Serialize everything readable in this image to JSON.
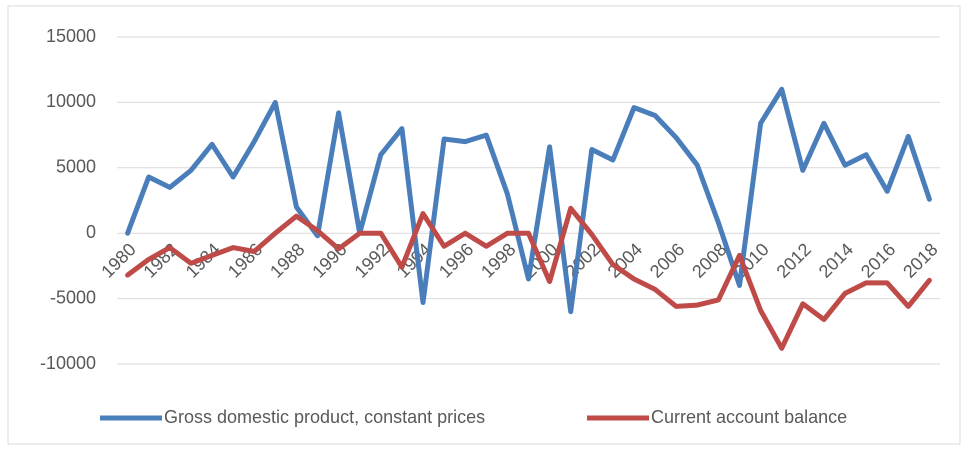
{
  "chart_data": {
    "type": "line",
    "categories": [
      "1980",
      null,
      "1982",
      null,
      "1984",
      null,
      "1986",
      null,
      "1988",
      null,
      "1990",
      null,
      "1992",
      null,
      "1994",
      null,
      "1996",
      null,
      "1998",
      null,
      "2000",
      null,
      "2002",
      null,
      "2004",
      null,
      "2006",
      null,
      "2008",
      null,
      "2010",
      null,
      "2012",
      null,
      "2014",
      null,
      "2016",
      null,
      "2018"
    ],
    "series": [
      {
        "name": "Gross domestic product, constant prices",
        "color": "#4a7ebb",
        "values": [
          0,
          4300,
          3500,
          4800,
          6800,
          4300,
          7000,
          10000,
          2000,
          -200,
          9200,
          0,
          6000,
          8000,
          -5300,
          7200,
          7000,
          7500,
          3000,
          -3500,
          6600,
          -6000,
          6400,
          5600,
          9600,
          9000,
          7300,
          5200,
          800,
          -4000,
          8400,
          11000,
          4800,
          8400,
          5200,
          6000,
          3200,
          7400,
          2600
        ]
      },
      {
        "name": "Current account balance",
        "color": "#be4b48",
        "values": [
          -3200,
          -2000,
          -1100,
          -2300,
          -1700,
          -1100,
          -1400,
          0,
          1300,
          200,
          -1200,
          0,
          0,
          -2600,
          1500,
          -1000,
          0,
          -1000,
          0,
          0,
          -3700,
          1900,
          -100,
          -2400,
          -3500,
          -4300,
          -5600,
          -5500,
          -5100,
          -1700,
          -5900,
          -8800,
          -5400,
          -6600,
          -4600,
          -3800,
          -3800,
          -5600,
          -3600
        ]
      }
    ],
    "ylim": [
      -10000,
      15000
    ],
    "yticks": [
      -10000,
      -5000,
      0,
      5000,
      10000,
      15000
    ],
    "grid": true,
    "legend": "bottom"
  }
}
